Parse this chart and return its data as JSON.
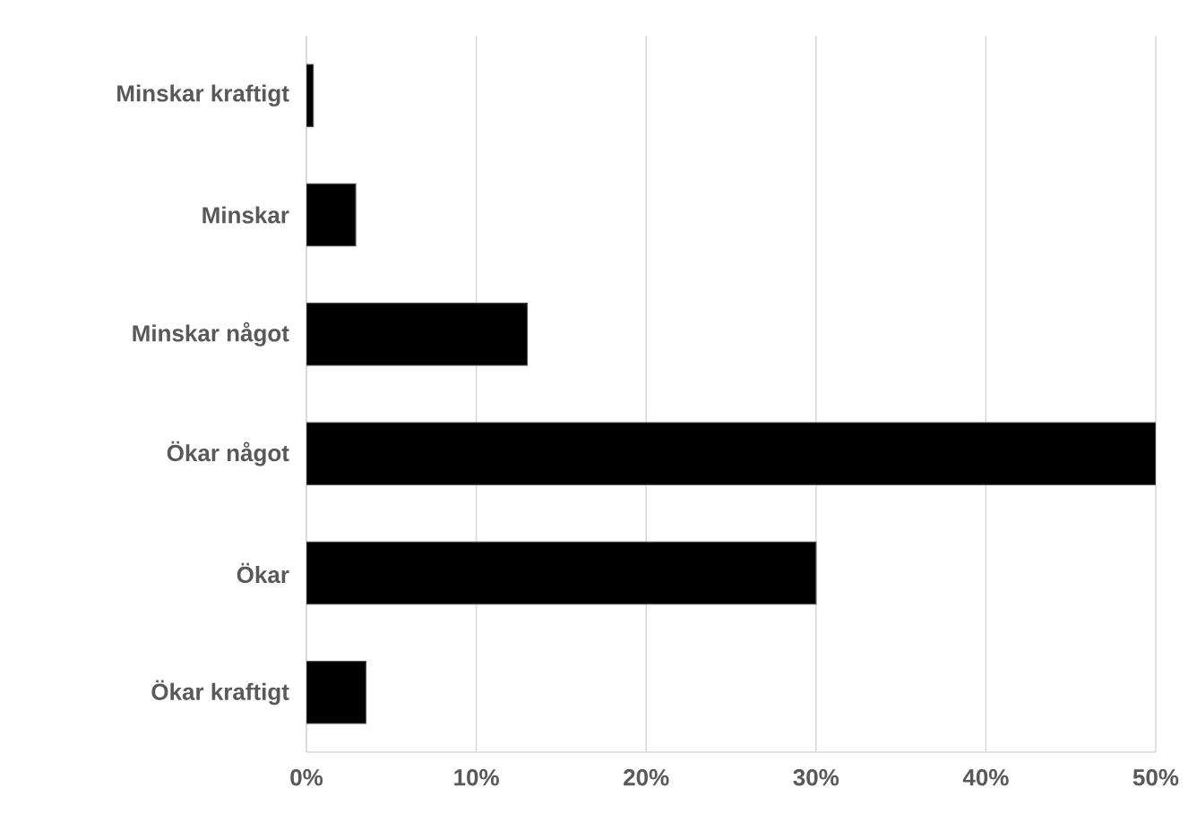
{
  "chart_data": {
    "type": "bar",
    "orientation": "horizontal",
    "categories": [
      "Minskar kraftigt",
      "Minskar",
      "Minskar något",
      "Ökar något",
      "Ökar",
      "Ökar kraftigt"
    ],
    "values": [
      0.4,
      2.9,
      13.0,
      50,
      30,
      3.5
    ],
    "color": "#000000",
    "xlim": [
      0,
      50
    ],
    "xticks": [
      {
        "value": 0,
        "label": "0%"
      },
      {
        "value": 10,
        "label": "10%"
      },
      {
        "value": 20,
        "label": "20%"
      },
      {
        "value": 30,
        "label": "30%"
      },
      {
        "value": 40,
        "label": "40%"
      },
      {
        "value": 50,
        "label": "50%"
      }
    ],
    "grid": "x"
  }
}
